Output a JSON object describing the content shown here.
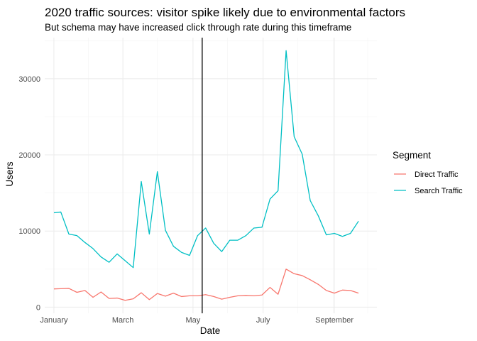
{
  "chart_data": {
    "type": "line",
    "title": "2020 traffic sources: visitor spike likely due to environmental factors",
    "subtitle": "But schema may have increased click through rate during this timeframe",
    "xlabel": "Date",
    "ylabel": "Users",
    "x_tick_labels": [
      "January",
      "March",
      "May",
      "July",
      "September"
    ],
    "y_tick_labels": [
      "0",
      "10000",
      "20000",
      "30000"
    ],
    "y_ticks": [
      0,
      10000,
      20000,
      30000
    ],
    "ylim": [
      -800,
      35400
    ],
    "xlim": [
      "2019-12-24",
      "2020-10-08"
    ],
    "x_ticks": [
      "2020-01-01",
      "2020-03-01",
      "2020-05-01",
      "2020-07-01",
      "2020-09-01"
    ],
    "x_minor_ticks": [
      "2020-01-31",
      "2020-03-31",
      "2020-05-31",
      "2020-07-31",
      "2020-08-31",
      "2020-09-30"
    ],
    "grid": true,
    "vline": {
      "x": "2020-05-09",
      "color": "#000000"
    },
    "legend": {
      "title": "Segment",
      "position": "right"
    },
    "x": [
      "2020-01-01",
      "2020-01-07",
      "2020-01-14",
      "2020-01-21",
      "2020-01-28",
      "2020-02-04",
      "2020-02-11",
      "2020-02-18",
      "2020-02-25",
      "2020-03-03",
      "2020-03-10",
      "2020-03-17",
      "2020-03-24",
      "2020-03-31",
      "2020-04-07",
      "2020-04-14",
      "2020-04-21",
      "2020-04-28",
      "2020-05-05",
      "2020-05-12",
      "2020-05-19",
      "2020-05-26",
      "2020-06-02",
      "2020-06-09",
      "2020-06-16",
      "2020-06-23",
      "2020-06-30",
      "2020-07-07",
      "2020-07-14",
      "2020-07-21",
      "2020-07-28",
      "2020-08-04",
      "2020-08-11",
      "2020-08-18",
      "2020-08-25",
      "2020-09-01",
      "2020-09-08",
      "2020-09-15",
      "2020-09-22",
      "2020-09-29"
    ],
    "series": [
      {
        "name": "Direct Traffic",
        "color": "#F8766D",
        "values": [
          2400,
          2430,
          2470,
          1950,
          2200,
          1300,
          2000,
          1150,
          1200,
          900,
          1100,
          1900,
          1000,
          1800,
          1450,
          1850,
          1400,
          1500,
          1500,
          1650,
          1400,
          1050,
          1300,
          1500,
          1550,
          1500,
          1600,
          2600,
          1700,
          5000,
          4400,
          4150,
          3600,
          3000,
          2200,
          1850,
          2250,
          2200,
          1850,
          null
        ]
      },
      {
        "name": "Search Traffic",
        "color": "#00BFC4",
        "values": [
          12400,
          12500,
          9600,
          9400,
          8500,
          7700,
          6600,
          5900,
          7000,
          6100,
          5200,
          16500,
          9600,
          17800,
          10100,
          8000,
          7200,
          6800,
          9400,
          10400,
          8400,
          7300,
          8800,
          8800,
          9400,
          10400,
          10500,
          14200,
          15300,
          33700,
          22400,
          20100,
          14000,
          12000,
          9500,
          9700,
          9300,
          9700,
          11300,
          null
        ]
      }
    ]
  }
}
